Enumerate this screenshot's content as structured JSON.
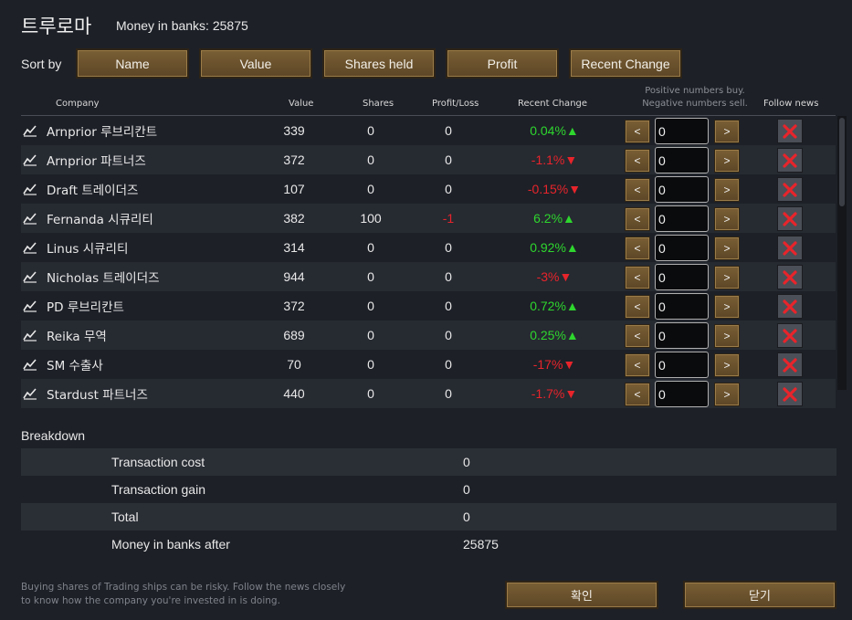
{
  "window": {
    "title": "트루로마",
    "money_label": "Money in banks: 25875"
  },
  "sort": {
    "label": "Sort by",
    "buttons": [
      "Name",
      "Value",
      "Shares held",
      "Profit",
      "Recent Change"
    ]
  },
  "table": {
    "headers": {
      "company": "Company",
      "value": "Value",
      "shares": "Shares",
      "profit": "Profit/Loss",
      "change": "Recent Change",
      "hint_line1": "Positive numbers buy.",
      "hint_line2": "Negative numbers sell.",
      "follow": "Follow news"
    },
    "rows": [
      {
        "name": "Arnprior 루브리칸트",
        "value": "339",
        "shares": "0",
        "profit": "0",
        "change": "0.04%",
        "dir": "up",
        "qty": "0"
      },
      {
        "name": "Arnprior 파트너즈",
        "value": "372",
        "shares": "0",
        "profit": "0",
        "change": "-1.1%",
        "dir": "down",
        "qty": "0"
      },
      {
        "name": "Draft 트레이더즈",
        "value": "107",
        "shares": "0",
        "profit": "0",
        "change": "-0.15%",
        "dir": "down",
        "qty": "0"
      },
      {
        "name": "Fernanda 시큐리티",
        "value": "382",
        "shares": "100",
        "profit": "-1",
        "change": "6.2%",
        "dir": "up",
        "qty": "0"
      },
      {
        "name": "Linus 시큐리티",
        "value": "314",
        "shares": "0",
        "profit": "0",
        "change": "0.92%",
        "dir": "up",
        "qty": "0"
      },
      {
        "name": "Nicholas 트레이더즈",
        "value": "944",
        "shares": "0",
        "profit": "0",
        "change": "-3%",
        "dir": "down",
        "qty": "0"
      },
      {
        "name": "PD 루브리칸트",
        "value": "372",
        "shares": "0",
        "profit": "0",
        "change": "0.72%",
        "dir": "up",
        "qty": "0"
      },
      {
        "name": "Reika 무역",
        "value": "689",
        "shares": "0",
        "profit": "0",
        "change": "0.25%",
        "dir": "up",
        "qty": "0"
      },
      {
        "name": "SM 수출사",
        "value": "70",
        "shares": "0",
        "profit": "0",
        "change": "-17%",
        "dir": "down",
        "qty": "0"
      },
      {
        "name": "Stardust 파트너즈",
        "value": "440",
        "shares": "0",
        "profit": "0",
        "change": "-1.7%",
        "dir": "down",
        "qty": "0"
      }
    ],
    "dec_label": "<",
    "inc_label": ">"
  },
  "breakdown": {
    "title": "Breakdown",
    "rows": [
      {
        "label": "Transaction cost",
        "value": "0"
      },
      {
        "label": "Transaction gain",
        "value": "0"
      },
      {
        "label": "Total",
        "value": "0"
      },
      {
        "label": "Money in banks after",
        "value": "25875"
      }
    ]
  },
  "footer": {
    "note_line1": "Buying shares of Trading ships can be risky. Follow the news closely",
    "note_line2": "to know how the company you're invested in is doing.",
    "confirm": "확인",
    "close": "닫기"
  },
  "colors": {
    "positive": "#2ed62e",
    "negative": "#e8242b",
    "button": "#6b522e",
    "background": "#1d2027"
  },
  "icons": {
    "company_icon": "trend-line-icon",
    "follow_icon": "red-x-icon",
    "up_arrow": "▲",
    "down_arrow": "▼"
  }
}
